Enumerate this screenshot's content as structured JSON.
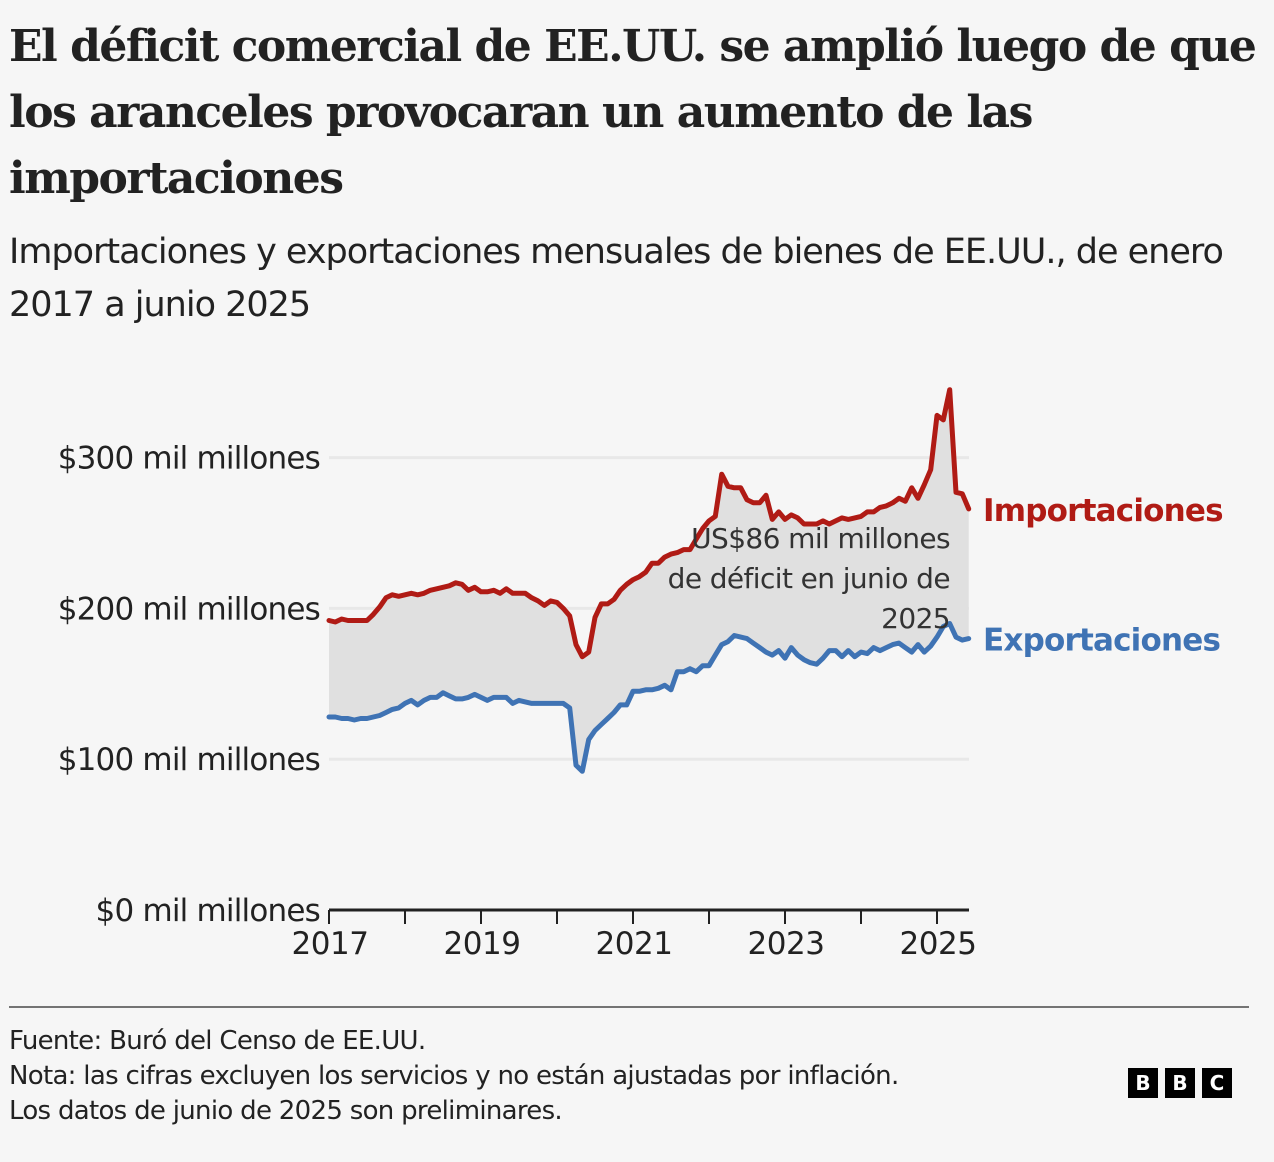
{
  "title": "El déficit comercial de EE.UU. se amplió luego de que los aranceles provocaran un aumento de las importaciones",
  "subtitle": "Importaciones y exportaciones mensuales de bienes de EE.UU., de enero 2017 a junio 2025",
  "colors": {
    "imports": "#b01b15",
    "exports": "#3f73b4",
    "fill": "#e0e0e0",
    "grid": "#e8e8e8",
    "background": "#f6f6f6"
  },
  "chart_data": {
    "type": "line",
    "title": "Importaciones y exportaciones mensuales de bienes de EE.UU., de enero 2017 a junio 2025",
    "xlabel": "",
    "ylabel": "",
    "x_start": "2017-01",
    "x_end": "2025-06",
    "frequency": "monthly",
    "xlim": [
      2017,
      2025.5
    ],
    "ylim": [
      0,
      350
    ],
    "yticks": [
      0,
      100,
      200,
      300
    ],
    "ytick_labels": [
      "$0 mil millones",
      "$100 mil millones",
      "$200 mil millones",
      "$300 mil millones"
    ],
    "xticks": [
      2017,
      2018,
      2019,
      2020,
      2021,
      2022,
      2023,
      2024,
      2025
    ],
    "xtick_labels": [
      "2017",
      "",
      "2019",
      "",
      "2021",
      "",
      "2023",
      "",
      "2025"
    ],
    "grid": true,
    "legend": "right, inline labels at line ends",
    "unit": "miles de millones de US$",
    "series": [
      {
        "name": "Importaciones",
        "values": [
          192,
          191,
          193,
          192,
          192,
          192,
          192,
          196,
          201,
          207,
          209,
          208,
          209,
          210,
          209,
          210,
          212,
          213,
          214,
          215,
          217,
          216,
          212,
          214,
          211,
          211,
          212,
          210,
          213,
          210,
          210,
          210,
          207,
          205,
          202,
          205,
          204,
          200,
          195,
          176,
          168,
          171,
          194,
          203,
          203,
          206,
          212,
          216,
          219,
          221,
          224,
          230,
          230,
          234,
          236,
          237,
          239,
          239,
          246,
          253,
          258,
          261,
          289,
          281,
          280,
          280,
          272,
          270,
          270,
          275,
          259,
          264,
          259,
          262,
          260,
          256,
          256,
          256,
          258,
          256,
          258,
          260,
          259,
          260,
          261,
          264,
          264,
          267,
          268,
          270,
          273,
          271,
          280,
          273,
          282,
          292,
          328,
          325,
          345,
          277,
          276,
          266
        ]
      },
      {
        "name": "Exportaciones",
        "values": [
          128,
          128,
          127,
          127,
          126,
          127,
          127,
          128,
          129,
          131,
          133,
          134,
          137,
          139,
          136,
          139,
          141,
          141,
          144,
          142,
          140,
          140,
          141,
          143,
          141,
          139,
          141,
          141,
          141,
          137,
          139,
          138,
          137,
          137,
          137,
          137,
          137,
          137,
          134,
          96,
          92,
          113,
          119,
          123,
          127,
          131,
          136,
          136,
          145,
          145,
          146,
          146,
          147,
          149,
          146,
          158,
          158,
          160,
          158,
          162,
          162,
          169,
          176,
          178,
          182,
          181,
          180,
          177,
          174,
          171,
          169,
          172,
          167,
          174,
          169,
          166,
          164,
          163,
          167,
          172,
          172,
          168,
          172,
          168,
          171,
          170,
          174,
          172,
          174,
          176,
          177,
          174,
          171,
          176,
          171,
          175,
          181,
          188,
          190,
          181,
          179,
          180
        ]
      }
    ],
    "annotations": [
      {
        "text_lines": [
          "US$86 mil millones",
          "de déficit en junio de",
          "2025"
        ],
        "refers_to": "2025-06",
        "value": 86
      }
    ],
    "series_labels": [
      "Importaciones",
      "Exportaciones"
    ]
  },
  "footer": {
    "source": "Fuente: Buró del Censo de EE.UU.",
    "note": "Nota: las cifras excluyen los servicios y no están ajustadas por inflación.",
    "note2": "Los datos de junio de 2025 son preliminares.",
    "logo_letters": [
      "B",
      "B",
      "C"
    ]
  }
}
